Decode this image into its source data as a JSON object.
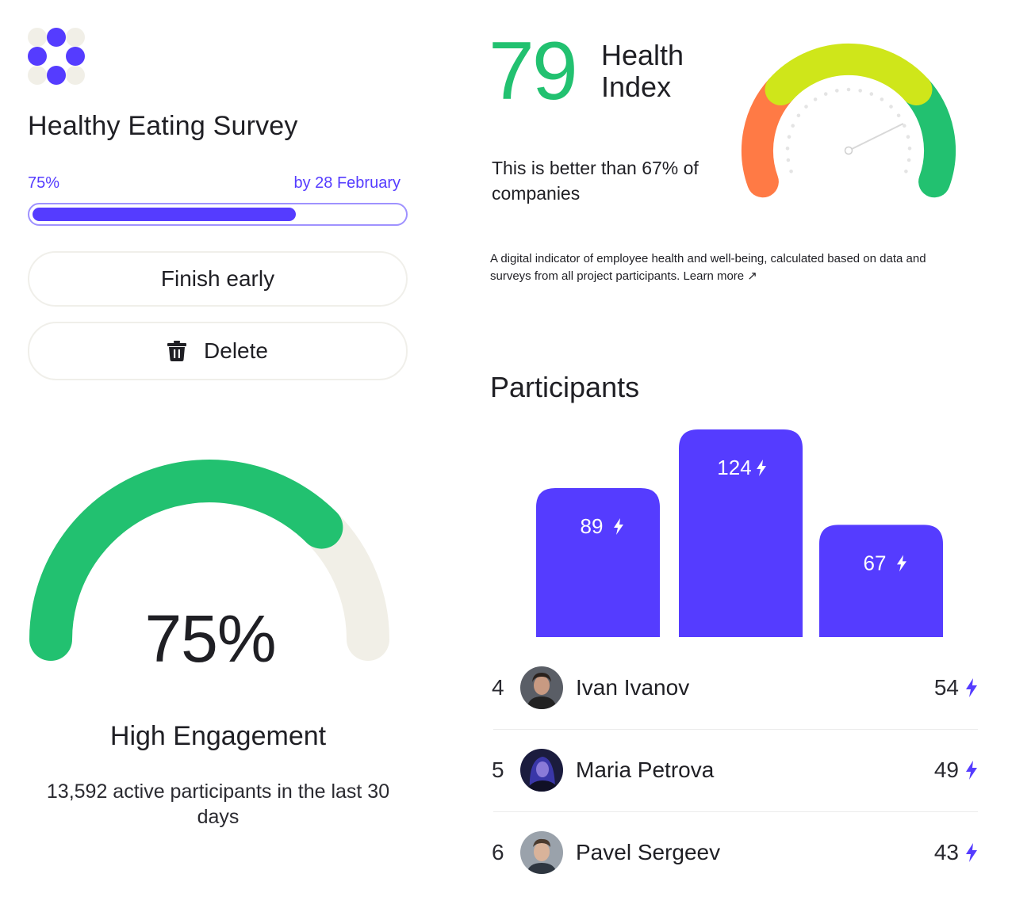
{
  "survey": {
    "title": "Healthy Eating Survey",
    "progress_label": "75%",
    "progress_value": 0.75,
    "deadline": "by 28 February",
    "finish_label": "Finish early",
    "delete_label": "Delete"
  },
  "engagement": {
    "percent_label": "75%",
    "percent_value": 0.75,
    "title": "High Engagement",
    "description": "13,592 active participants in the last 30 days"
  },
  "health_index": {
    "value": "79",
    "label": "Health Index",
    "comparison": "This is better than 67% of companies",
    "description": "A digital indicator of employee health and well-being, calculated based on data and surveys from all project participants.",
    "learn_more": "Learn more ↗",
    "gauge_value": 0.79
  },
  "participants": {
    "title": "Participants",
    "podium": [
      {
        "label": "89",
        "value": 89
      },
      {
        "label": "124",
        "value": 124
      },
      {
        "label": "67",
        "value": 67
      }
    ],
    "rows": [
      {
        "rank": "4",
        "name": "Ivan Ivanov",
        "score": "54"
      },
      {
        "rank": "5",
        "name": "Maria Petrova",
        "score": "49"
      },
      {
        "rank": "6",
        "name": "Pavel Sergeev",
        "score": "43"
      }
    ]
  },
  "colors": {
    "accent": "#553cff",
    "green": "#22c170",
    "orange": "#ff7a45",
    "lime": "#cfe61a",
    "track": "#f1efe7"
  }
}
